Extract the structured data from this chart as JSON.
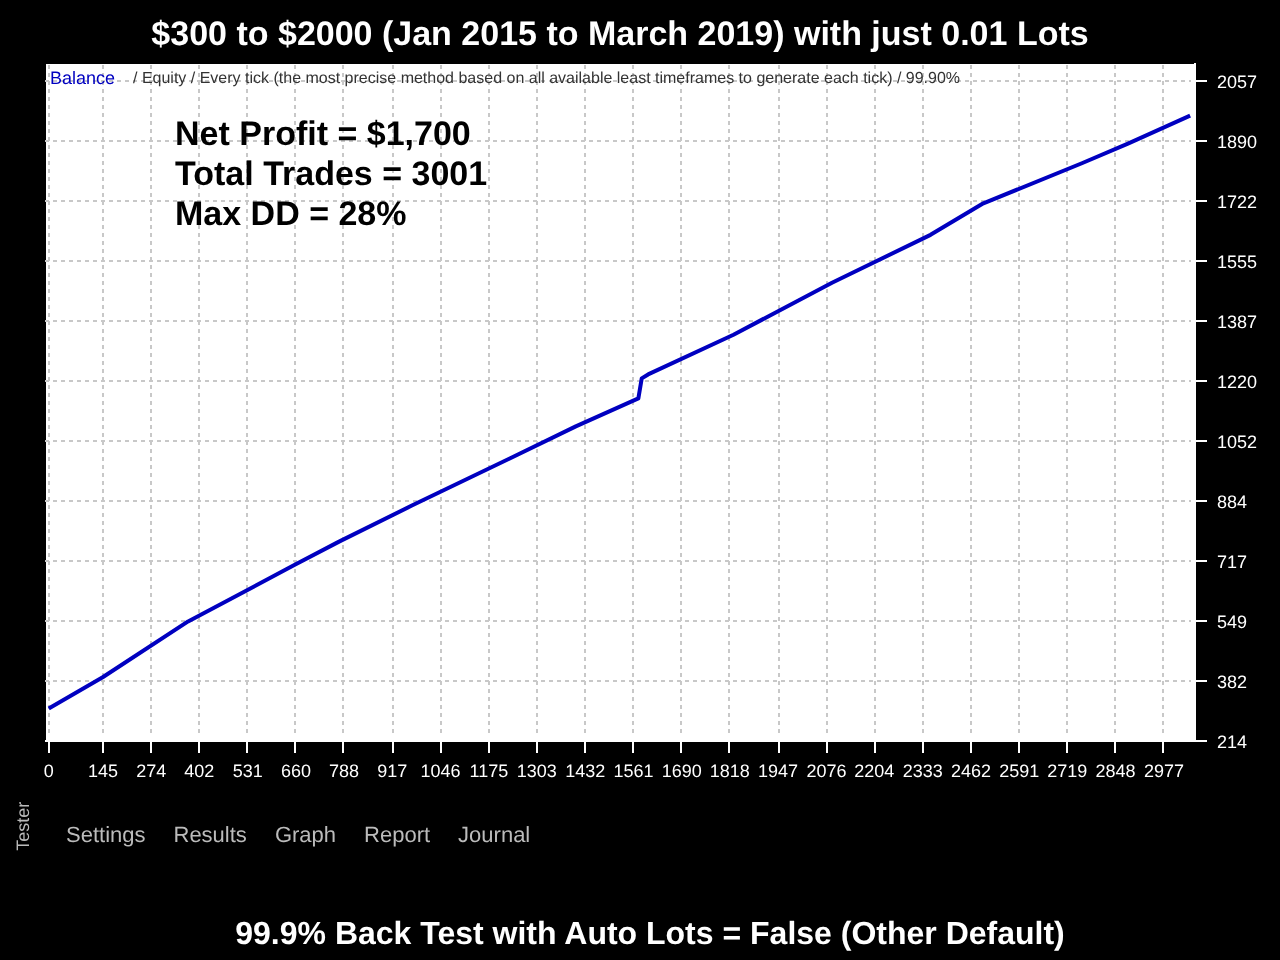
{
  "chart_data": {
    "type": "line",
    "title": "$300 to $2000 (Jan 2015 to March 2019) with just 0.01 Lots",
    "x": [
      0,
      144,
      372,
      653,
      775,
      968,
      1232,
      1407,
      1574,
      1583,
      1600,
      1828,
      2091,
      2354,
      2495,
      2758,
      2881,
      3047
    ],
    "series": [
      {
        "name": "Balance",
        "color": "#0000c0",
        "values": [
          305,
          392,
          548,
          704,
          771,
          871,
          1004,
          1093,
          1171,
          1227,
          1238,
          1349,
          1494,
          1628,
          1716,
          1828,
          1883,
          1961
        ]
      }
    ],
    "xlim": [
      -10,
      3060
    ],
    "ylim": [
      214,
      2108
    ],
    "xticks": [
      0,
      145,
      274,
      402,
      531,
      660,
      788,
      917,
      1046,
      1175,
      1303,
      1432,
      1561,
      1690,
      1818,
      1947,
      2076,
      2204,
      2333,
      2462,
      2591,
      2719,
      2848,
      2977
    ],
    "yticks": [
      214,
      382,
      549,
      717,
      884,
      1052,
      1220,
      1387,
      1555,
      1722,
      1890,
      2057
    ],
    "grid": true,
    "legend": "top left",
    "marker": "none",
    "line_style": "solid",
    "annotations": [
      "/ Equity / Every tick (the most precise method based on all available least timeframes to generate each tick) / 99.90%",
      "Net Profit = $1,700",
      "Total Trades = 3001",
      "Max DD = 28%",
      "99.9% Back Test with Auto Lots = False (Other Default)",
      "Settings",
      "Results",
      "Graph",
      "Report",
      "Journal",
      "Tester"
    ]
  }
}
